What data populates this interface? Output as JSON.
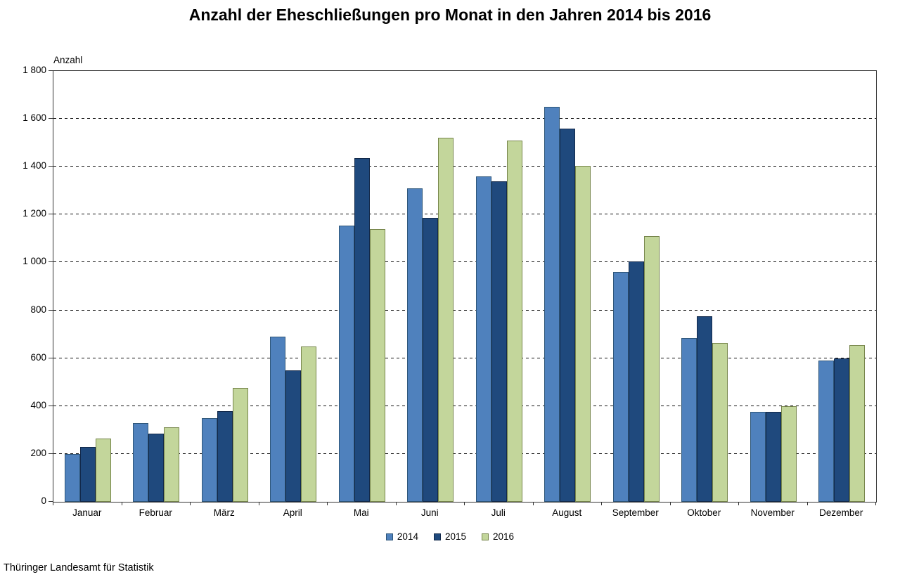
{
  "title": "Anzahl der Eheschließungen pro Monat in den Jahren 2014 bis 2016",
  "footer": "Thüringer Landesamt für Statistik",
  "chart_data": {
    "type": "bar",
    "title": "Anzahl der Eheschließungen pro Monat in den Jahren 2014 bis 2016",
    "xlabel": "",
    "ylabel": "Anzahl",
    "ylim": [
      0,
      1800
    ],
    "ytick_step": 200,
    "grid": "horizontal-dashed",
    "legend_position": "bottom",
    "categories": [
      "Januar",
      "Februar",
      "März",
      "April",
      "Mai",
      "Juni",
      "Juli",
      "August",
      "September",
      "Oktober",
      "November",
      "Dezember"
    ],
    "series": [
      {
        "name": "2014",
        "color": "#4F81BD",
        "border_color": "#2E5679",
        "values": [
          200,
          330,
          350,
          690,
          1155,
          1310,
          1360,
          1650,
          960,
          685,
          375,
          590
        ]
      },
      {
        "name": "2015",
        "color": "#1F497D",
        "border_color": "#12294A",
        "values": [
          230,
          285,
          380,
          550,
          1435,
          1185,
          1340,
          1560,
          1005,
          775,
          375,
          600
        ]
      },
      {
        "name": "2016",
        "color": "#C3D69B",
        "border_color": "#77864C",
        "values": [
          265,
          310,
          475,
          650,
          1140,
          1520,
          1510,
          1405,
          1110,
          665,
          400,
          655
        ]
      }
    ],
    "source": "Thüringer Landesamt für Statistik"
  }
}
